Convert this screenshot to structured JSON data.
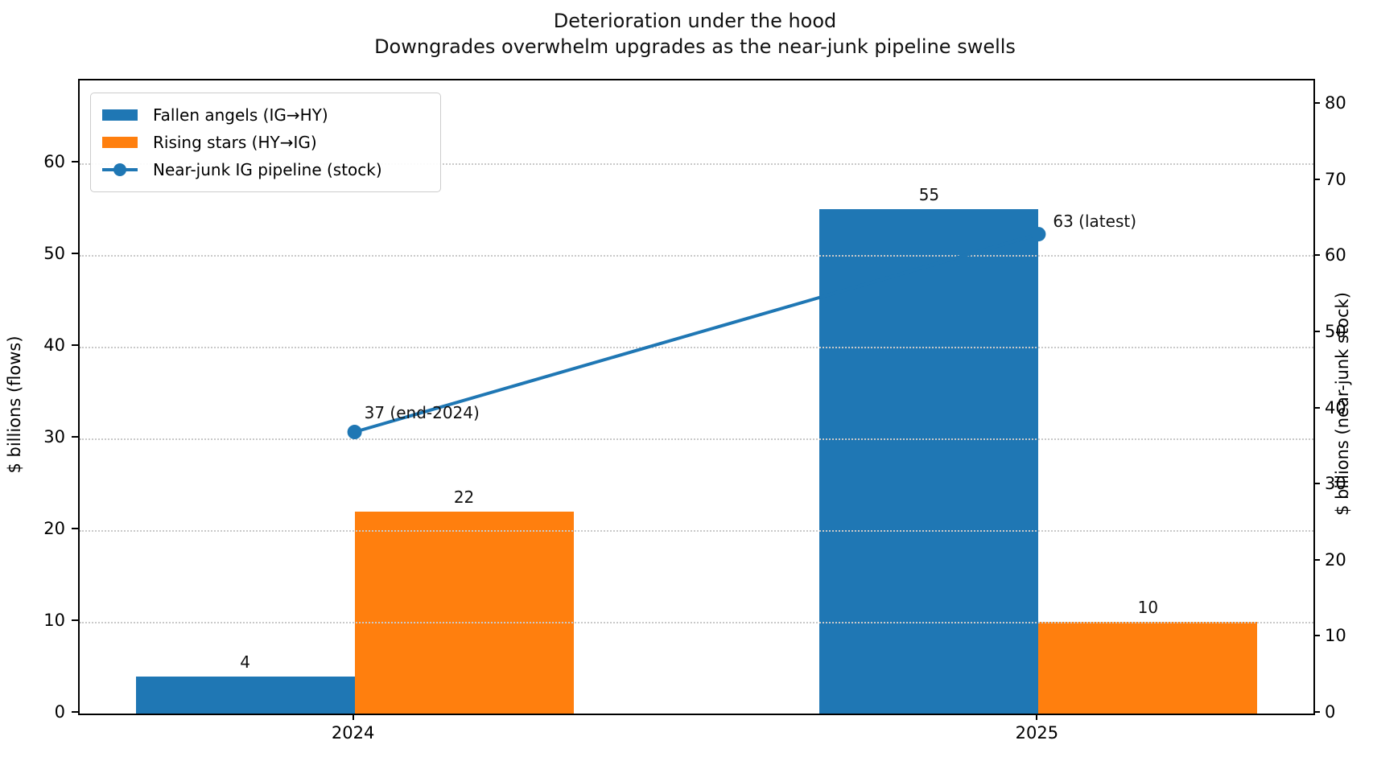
{
  "title": {
    "line1": "Deterioration under the hood",
    "line2": "Downgrades overwhelm upgrades as the near-junk pipeline swells"
  },
  "colors": {
    "fallen_angels_blue": "#1f77b4",
    "rising_stars_orange": "#ff7f0e",
    "gridline_gray": "#c9c9c9",
    "axis_black": "#000000",
    "background": "#ffffff"
  },
  "chart_data": {
    "type": "bar",
    "categories": [
      "2024",
      "2025"
    ],
    "series": [
      {
        "name": "Fallen angels (IG→HY)",
        "type": "bar",
        "axis": "left",
        "color": "#1f77b4",
        "values": [
          4,
          55
        ],
        "value_labels": [
          "4",
          "55"
        ]
      },
      {
        "name": "Rising stars (HY→IG)",
        "type": "bar",
        "axis": "left",
        "color": "#ff7f0e",
        "values": [
          22,
          10
        ],
        "value_labels": [
          "22",
          "10"
        ]
      },
      {
        "name": "Near-junk IG pipeline (stock)",
        "type": "line",
        "axis": "right",
        "color": "#1f77b4",
        "values": [
          37,
          63
        ],
        "annotations": [
          "37 (end-2024)",
          "63 (latest)"
        ]
      }
    ],
    "left_axis": {
      "label": "$ billions (flows)",
      "ticks": [
        0,
        10,
        20,
        30,
        40,
        50,
        60
      ],
      "max": 69
    },
    "right_axis": {
      "label": "$ billions (near-junk stock)",
      "ticks": [
        0,
        10,
        20,
        30,
        40,
        50,
        60,
        70,
        80
      ],
      "max": 83.2
    },
    "xlim": [
      -0.402,
      1.402
    ],
    "bar_width": 0.32,
    "grid": "horizontal dotted at left-axis ticks",
    "legend_position": "upper-left"
  }
}
